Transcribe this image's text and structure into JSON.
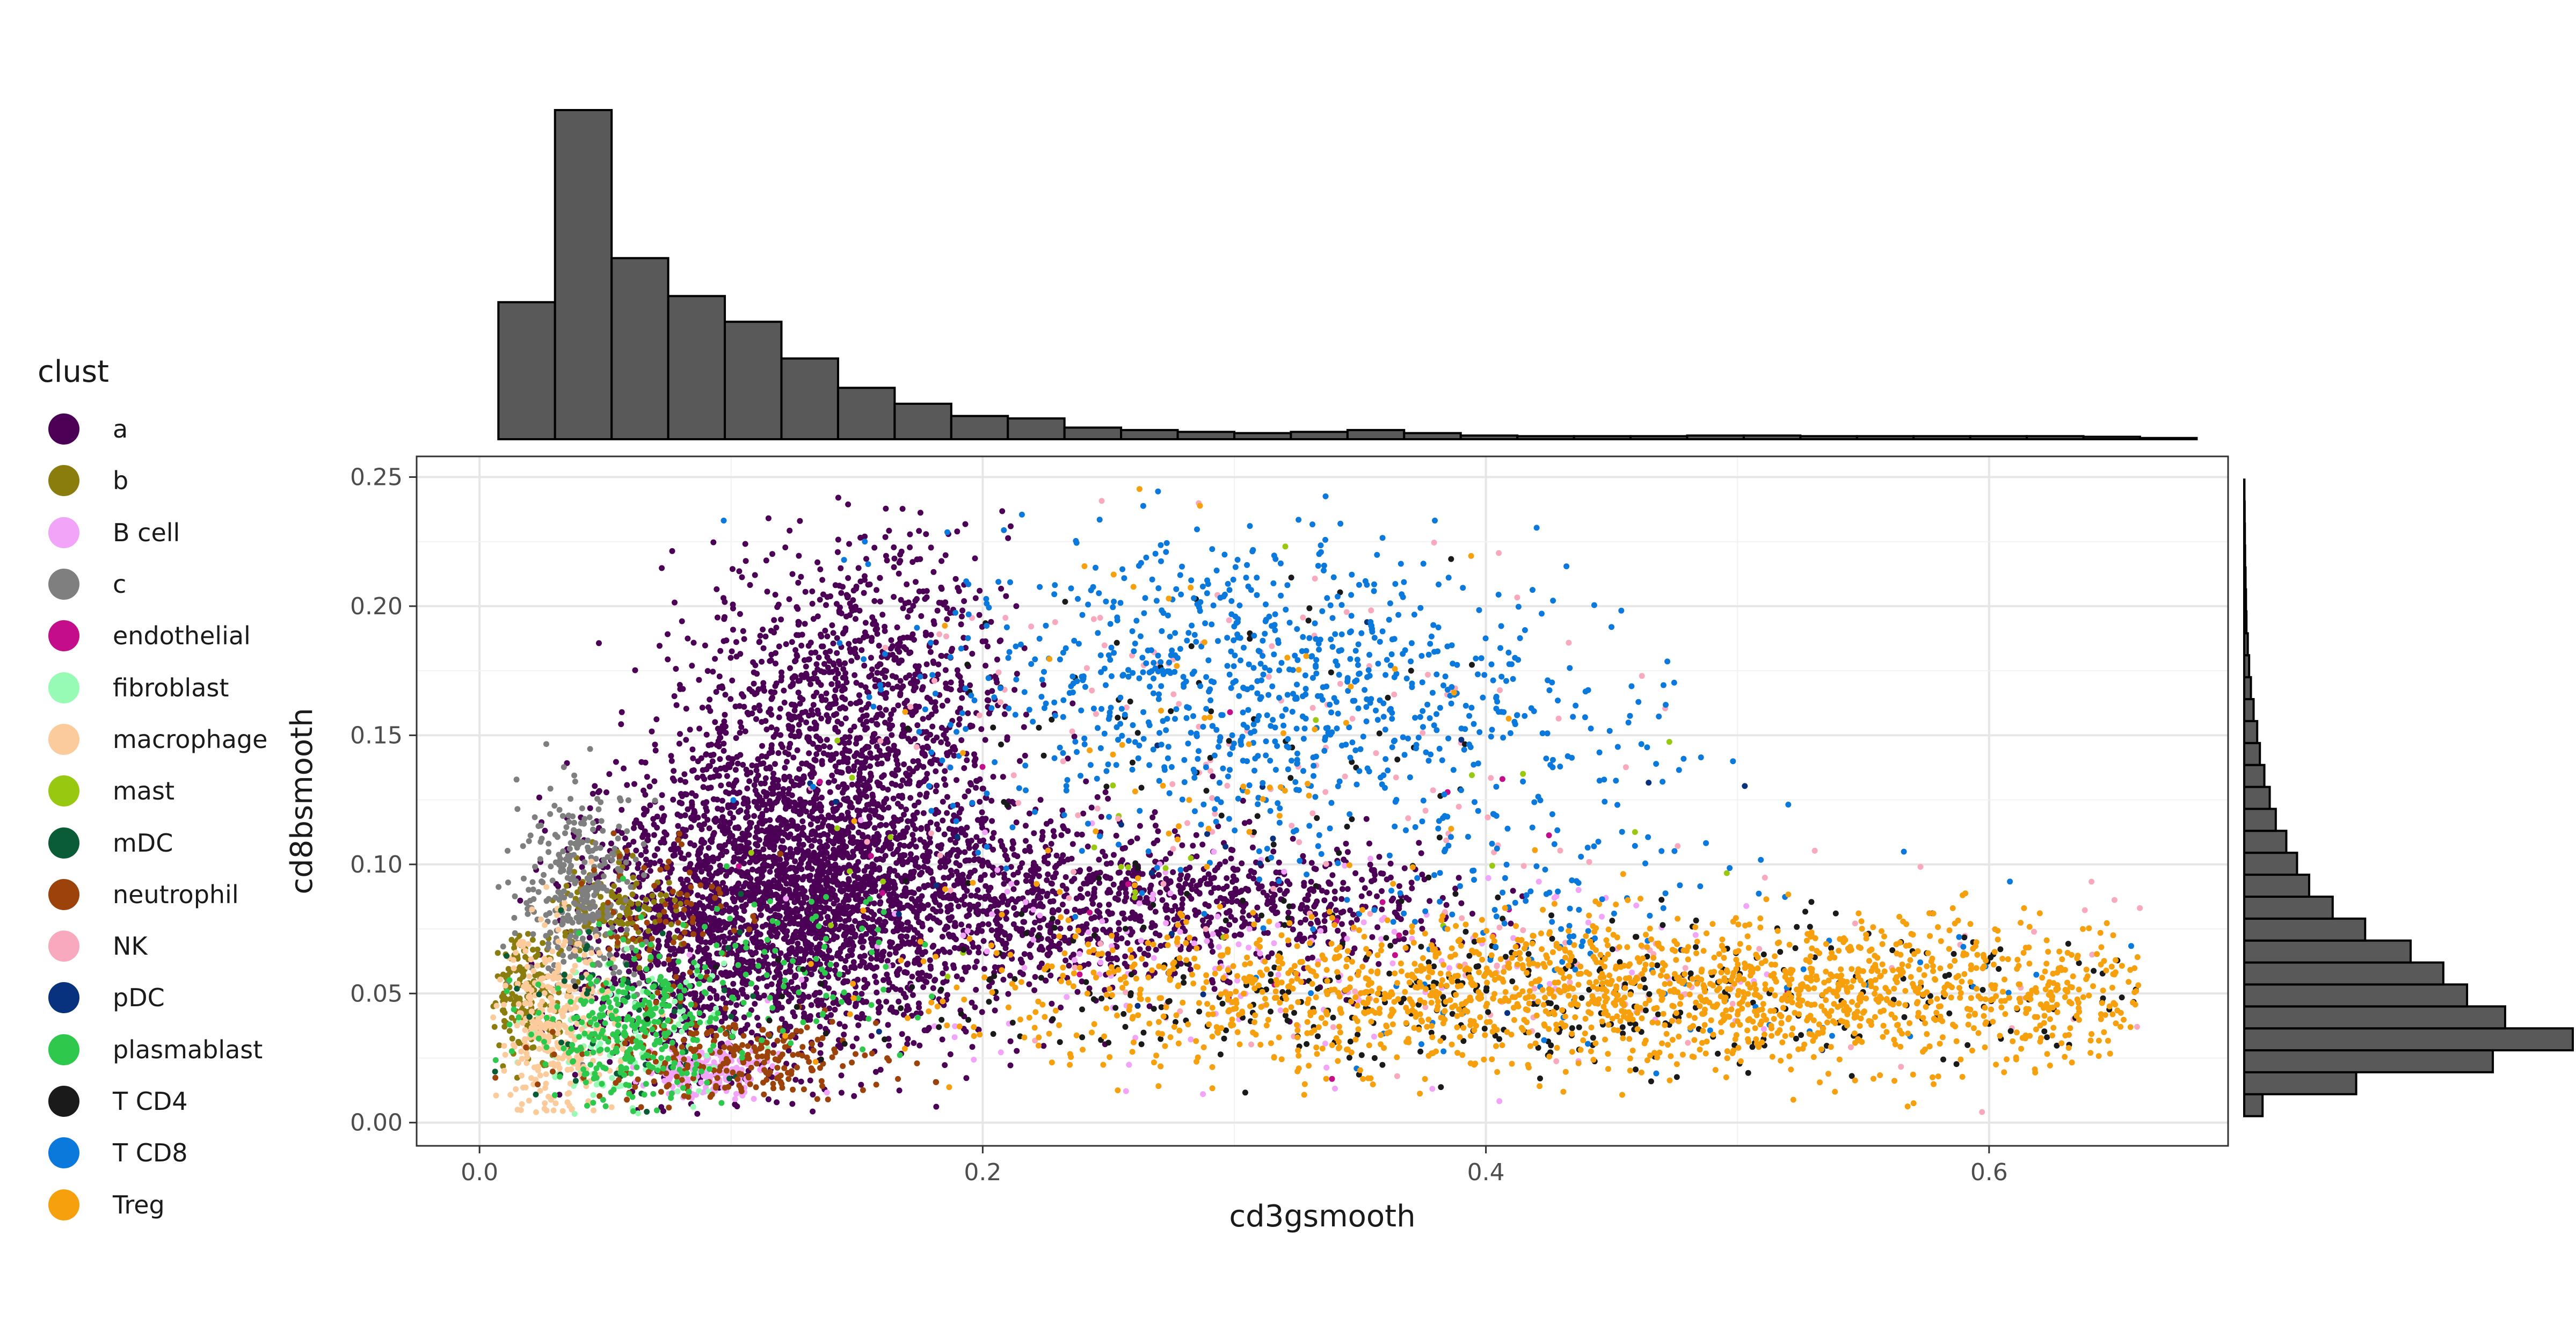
{
  "chart_data": {
    "type": "scatter",
    "xlabel": "cd3gsmooth",
    "ylabel": "cd8bsmooth",
    "xlim": [
      -0.025,
      0.695
    ],
    "ylim": [
      -0.009,
      0.258
    ],
    "x_ticks": [
      {
        "value": 0.0,
        "label": "0.0"
      },
      {
        "value": 0.2,
        "label": "0.2"
      },
      {
        "value": 0.4,
        "label": "0.4"
      },
      {
        "value": 0.6,
        "label": "0.6"
      }
    ],
    "y_ticks": [
      {
        "value": 0.0,
        "label": "0.00"
      },
      {
        "value": 0.05,
        "label": "0.05"
      },
      {
        "value": 0.1,
        "label": "0.10"
      },
      {
        "value": 0.15,
        "label": "0.15"
      },
      {
        "value": 0.2,
        "label": "0.20"
      },
      {
        "value": 0.25,
        "label": "0.25"
      }
    ],
    "grid": true,
    "legend_position": "left",
    "legend": {
      "title": "clust",
      "items": [
        {
          "name": "a",
          "color": "#4B0055"
        },
        {
          "name": "b",
          "color": "#8B7C0E"
        },
        {
          "name": "B cell",
          "color": "#F1A4F8"
        },
        {
          "name": "c",
          "color": "#7F7F7F"
        },
        {
          "name": "endothelial",
          "color": "#C40D8B"
        },
        {
          "name": "fibroblast",
          "color": "#98FBB5"
        },
        {
          "name": "macrophage",
          "color": "#FBCB9C"
        },
        {
          "name": "mast",
          "color": "#98C810"
        },
        {
          "name": "mDC",
          "color": "#0A5C37"
        },
        {
          "name": "neutrophil",
          "color": "#9B430A"
        },
        {
          "name": "NK",
          "color": "#F8A9BE"
        },
        {
          "name": "pDC",
          "color": "#08327E"
        },
        {
          "name": "plasmablast",
          "color": "#2EC94C"
        },
        {
          "name": "T CD4",
          "color": "#1A1A1A"
        },
        {
          "name": "T CD8",
          "color": "#0A79DB"
        },
        {
          "name": "Treg",
          "color": "#F6A00E"
        }
      ]
    },
    "clusters": [
      {
        "name": "a",
        "regions": [
          {
            "x": 0.13,
            "y": 0.09,
            "sx": 0.035,
            "sy": 0.03,
            "n": 2600
          },
          {
            "x": 0.15,
            "y": 0.17,
            "sx": 0.03,
            "sy": 0.028,
            "n": 900
          },
          {
            "x": 0.22,
            "y": 0.085,
            "sx": 0.045,
            "sy": 0.018,
            "n": 900
          },
          {
            "x": 0.32,
            "y": 0.085,
            "sx": 0.04,
            "sy": 0.012,
            "n": 350
          },
          {
            "x": 0.08,
            "y": 0.07,
            "sx": 0.02,
            "sy": 0.03,
            "n": 600
          }
        ]
      },
      {
        "name": "b",
        "regions": [
          {
            "x": 0.02,
            "y": 0.05,
            "sx": 0.008,
            "sy": 0.012,
            "n": 180
          },
          {
            "x": 0.055,
            "y": 0.085,
            "sx": 0.012,
            "sy": 0.01,
            "n": 120
          }
        ]
      },
      {
        "name": "B cell",
        "regions": [
          {
            "x": 0.09,
            "y": 0.02,
            "sx": 0.012,
            "sy": 0.005,
            "n": 180
          },
          {
            "x": 0.3,
            "y": 0.06,
            "sx": 0.1,
            "sy": 0.02,
            "n": 160
          }
        ]
      },
      {
        "name": "c",
        "regions": [
          {
            "x": 0.04,
            "y": 0.09,
            "sx": 0.012,
            "sy": 0.02,
            "n": 320
          }
        ]
      },
      {
        "name": "endothelial",
        "regions": [
          {
            "x": 0.32,
            "y": 0.08,
            "sx": 0.12,
            "sy": 0.03,
            "n": 25
          }
        ]
      },
      {
        "name": "fibroblast",
        "regions": [
          {
            "x": 0.06,
            "y": 0.03,
            "sx": 0.02,
            "sy": 0.015,
            "n": 120
          }
        ]
      },
      {
        "name": "macrophage",
        "regions": [
          {
            "x": 0.03,
            "y": 0.035,
            "sx": 0.012,
            "sy": 0.02,
            "n": 360
          }
        ]
      },
      {
        "name": "mast",
        "regions": [
          {
            "x": 0.28,
            "y": 0.12,
            "sx": 0.1,
            "sy": 0.04,
            "n": 30
          }
        ]
      },
      {
        "name": "mDC",
        "regions": [
          {
            "x": 0.06,
            "y": 0.04,
            "sx": 0.03,
            "sy": 0.02,
            "n": 60
          }
        ]
      },
      {
        "name": "neutrophil",
        "regions": [
          {
            "x": 0.1,
            "y": 0.025,
            "sx": 0.03,
            "sy": 0.008,
            "n": 260
          },
          {
            "x": 0.07,
            "y": 0.08,
            "sx": 0.015,
            "sy": 0.02,
            "n": 80
          }
        ]
      },
      {
        "name": "NK",
        "regions": [
          {
            "x": 0.3,
            "y": 0.15,
            "sx": 0.08,
            "sy": 0.04,
            "n": 120
          },
          {
            "x": 0.45,
            "y": 0.06,
            "sx": 0.1,
            "sy": 0.02,
            "n": 90
          }
        ]
      },
      {
        "name": "pDC",
        "regions": [
          {
            "x": 0.3,
            "y": 0.1,
            "sx": 0.12,
            "sy": 0.04,
            "n": 25
          }
        ]
      },
      {
        "name": "plasmablast",
        "regions": [
          {
            "x": 0.06,
            "y": 0.035,
            "sx": 0.02,
            "sy": 0.015,
            "n": 320
          },
          {
            "x": 0.12,
            "y": 0.06,
            "sx": 0.03,
            "sy": 0.015,
            "n": 80
          }
        ]
      },
      {
        "name": "T CD4",
        "regions": [
          {
            "x": 0.42,
            "y": 0.05,
            "sx": 0.13,
            "sy": 0.015,
            "n": 420
          },
          {
            "x": 0.3,
            "y": 0.13,
            "sx": 0.06,
            "sy": 0.04,
            "n": 90
          }
        ]
      },
      {
        "name": "T CD8",
        "regions": [
          {
            "x": 0.3,
            "y": 0.17,
            "sx": 0.06,
            "sy": 0.03,
            "n": 800
          },
          {
            "x": 0.4,
            "y": 0.12,
            "sx": 0.05,
            "sy": 0.04,
            "n": 200
          },
          {
            "x": 0.5,
            "y": 0.06,
            "sx": 0.1,
            "sy": 0.02,
            "n": 60
          }
        ]
      },
      {
        "name": "Treg",
        "regions": [
          {
            "x": 0.5,
            "y": 0.05,
            "sx": 0.11,
            "sy": 0.014,
            "n": 1600
          },
          {
            "x": 0.3,
            "y": 0.05,
            "sx": 0.07,
            "sy": 0.015,
            "n": 350
          },
          {
            "x": 0.3,
            "y": 0.15,
            "sx": 0.07,
            "sy": 0.04,
            "n": 60
          }
        ]
      }
    ],
    "top_histogram": {
      "x_start": 0.0075,
      "bin_width": 0.0225,
      "counts": [
        22.4,
        53.8,
        29.6,
        23.4,
        19.2,
        13.2,
        8.4,
        5.8,
        3.8,
        3.4,
        1.9,
        1.5,
        1.2,
        1.0,
        1.2,
        1.5,
        1.0,
        0.6,
        0.5,
        0.5,
        0.5,
        0.6,
        0.6,
        0.5,
        0.5,
        0.5,
        0.5,
        0.5,
        0.4,
        0.2
      ]
    },
    "right_histogram": {
      "y_start": 0.0025,
      "bin_width": 0.0085,
      "counts": [
        8.2,
        50.0,
        111.0,
        146.7,
        116.5,
        99.5,
        88.9,
        74.3,
        54.0,
        39.5,
        29.0,
        23.6,
        18.8,
        14.1,
        11.4,
        9.0,
        7.0,
        5.8,
        4.2,
        3.0,
        2.2,
        1.6,
        1.0,
        0.8,
        0.6,
        0.4,
        0.3,
        0.2,
        0.1
      ]
    }
  }
}
